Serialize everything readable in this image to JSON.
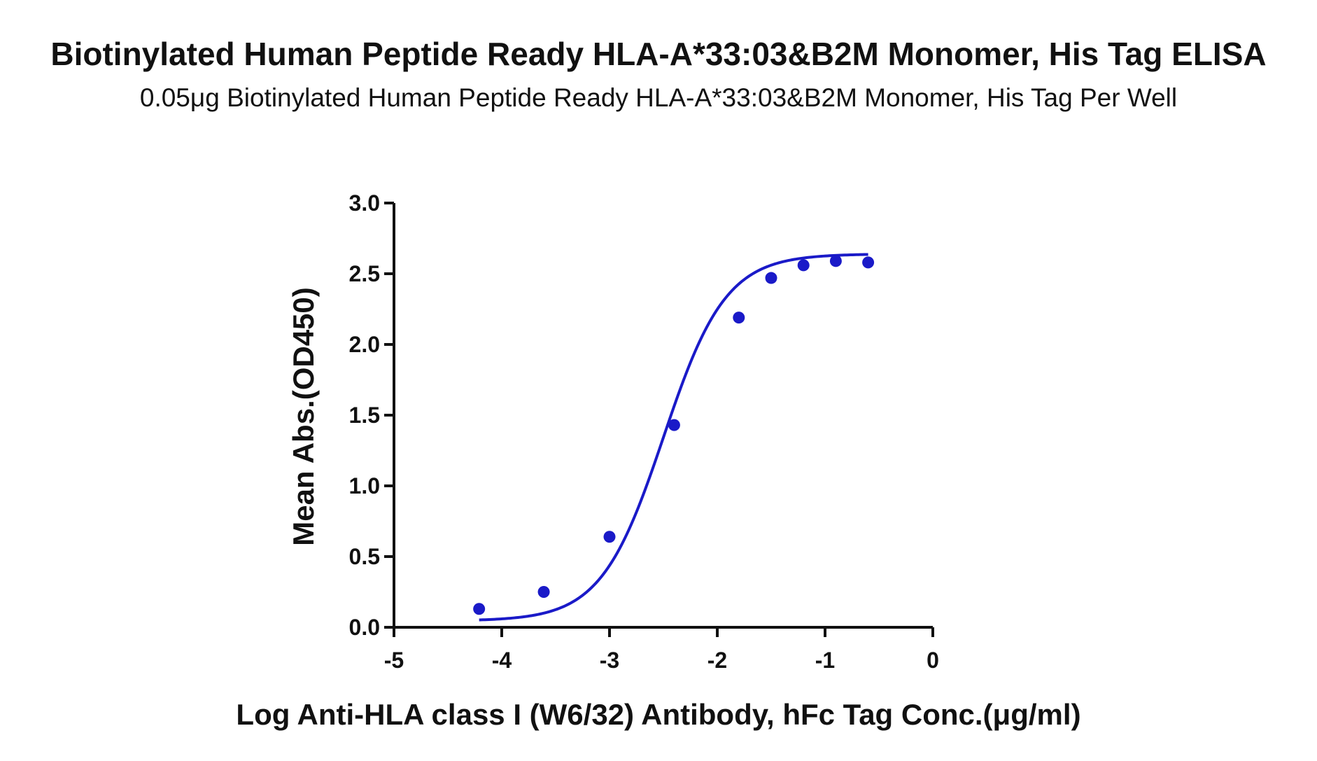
{
  "chart_data": {
    "type": "scatter",
    "title": "Biotinylated Human Peptide Ready HLA-A*33:03&B2M Monomer, His Tag ELISA",
    "subtitle": "0.05μg Biotinylated Human Peptide Ready HLA-A*33:03&B2M Monomer, His Tag Per Well",
    "xlabel": "Log Anti-HLA class I (W6/32) Antibody, hFc Tag Conc.(μg/ml)",
    "ylabel": "Mean Abs.(OD450)",
    "xlim": [
      -5,
      0
    ],
    "ylim": [
      0,
      3.0
    ],
    "x_ticks": [
      -5,
      -4,
      -3,
      -2,
      -1,
      0
    ],
    "x_tick_labels": [
      "-5",
      "-4",
      "-3",
      "-2",
      "-1",
      "0"
    ],
    "y_ticks": [
      0,
      0.5,
      1.0,
      1.5,
      2.0,
      2.5,
      3.0
    ],
    "y_tick_labels": [
      "0.0",
      "0.5",
      "1.0",
      "1.5",
      "2.0",
      "2.5",
      "3.0"
    ],
    "grid": false,
    "series": [
      {
        "color": "#1a1ac8",
        "x": [
          -4.21,
          -3.61,
          -3.0,
          -2.4,
          -1.8,
          -1.5,
          -1.2,
          -0.9,
          -0.6
        ],
        "y": [
          0.13,
          0.25,
          0.64,
          1.43,
          2.19,
          2.47,
          2.56,
          2.59,
          2.58
        ],
        "fit": "4PL"
      }
    ]
  }
}
